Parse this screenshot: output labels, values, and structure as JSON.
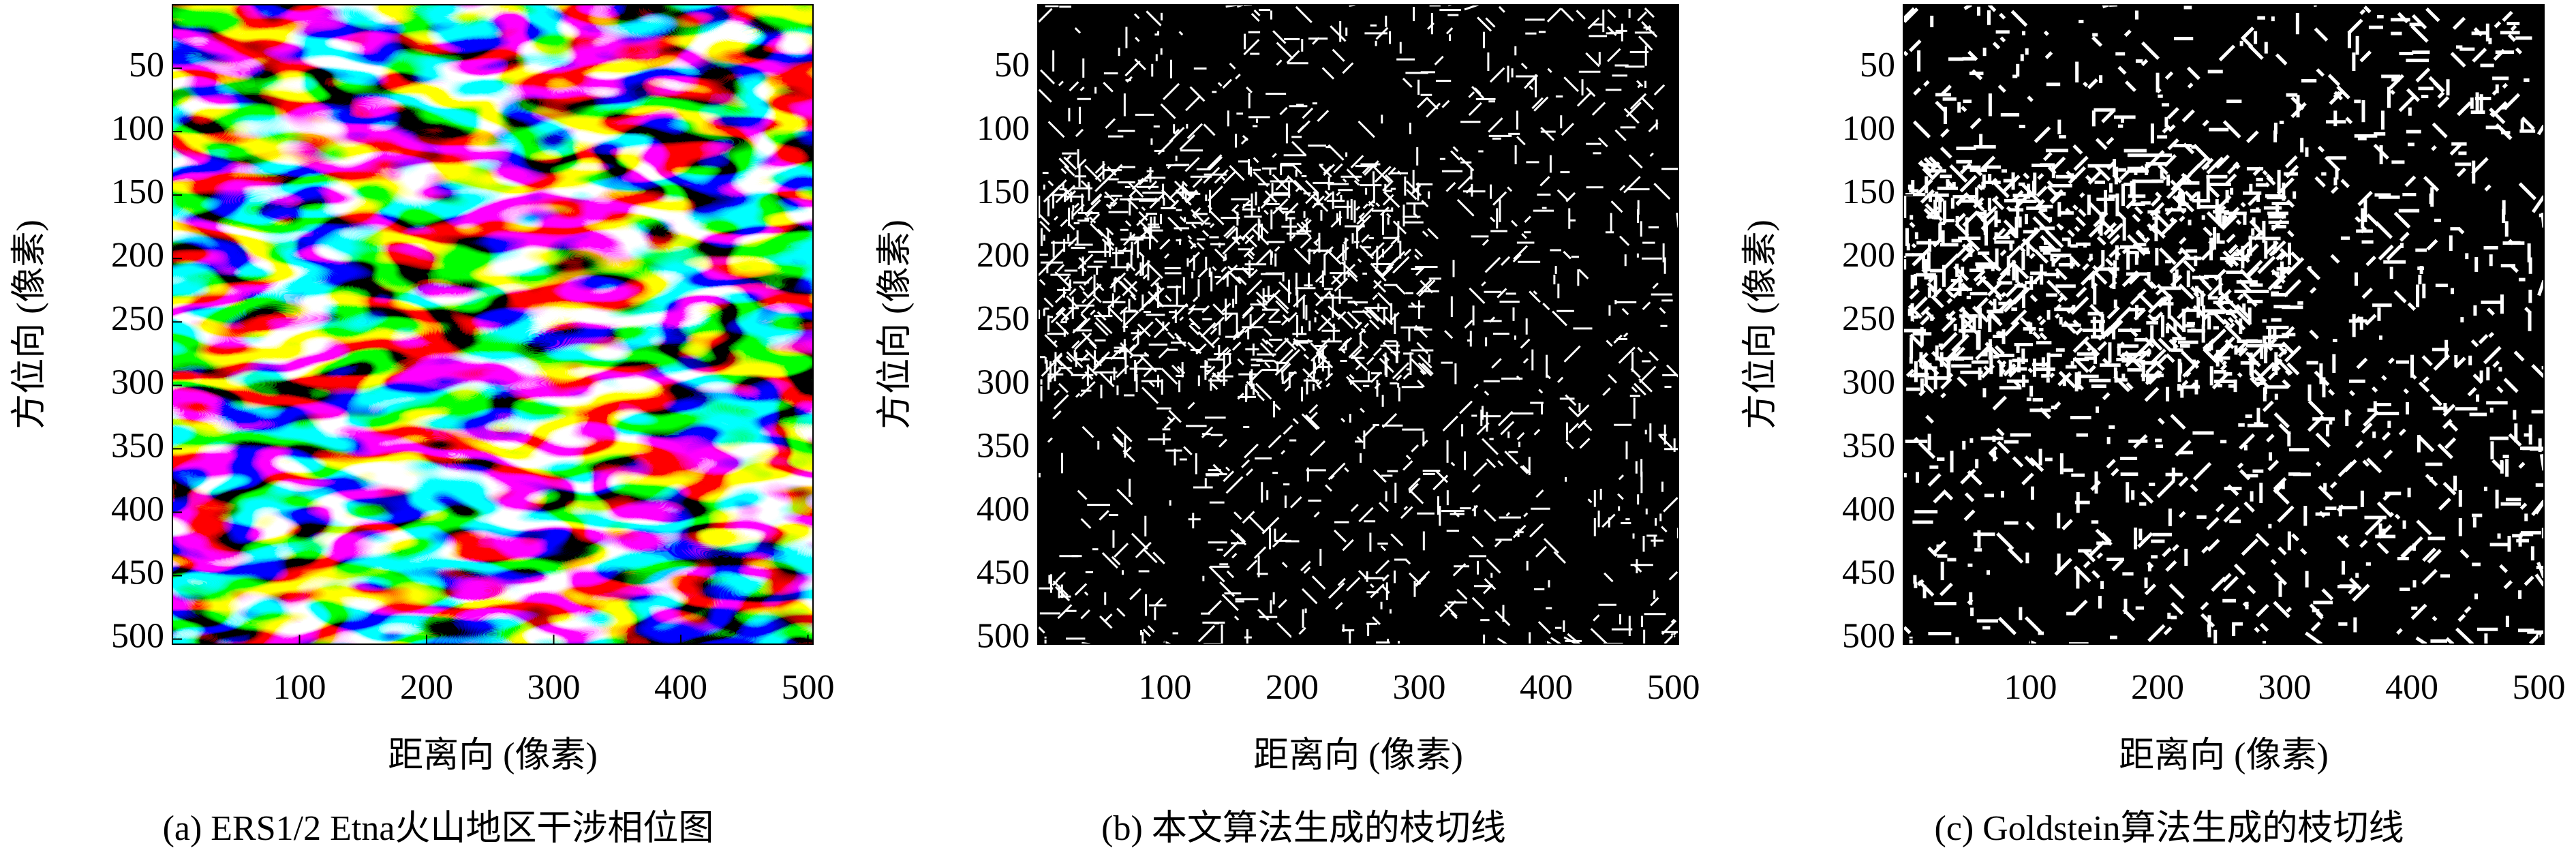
{
  "chart_data": [
    {
      "type": "image",
      "colormap": "hsv",
      "caption": "(a) ERS1/2 Etna火山地区干涉相位图",
      "xlabel": "距离向 (像素)",
      "ylabel": "方位向 (像素)",
      "xlim": [
        0,
        504
      ],
      "ylim": [
        0,
        504
      ],
      "yinverted": true,
      "xticks": [
        100,
        200,
        300,
        400,
        500
      ],
      "yticks": [
        50,
        100,
        150,
        200,
        250,
        300,
        350,
        400,
        450,
        500
      ]
    },
    {
      "type": "image",
      "colormap": "gray",
      "caption": "(b) 本文算法生成的枝切线",
      "xlabel": "距离向 (像素)",
      "ylabel": "方位向 (像素)",
      "xlim": [
        0,
        504
      ],
      "ylim": [
        0,
        504
      ],
      "yinverted": true,
      "xticks": [
        100,
        200,
        300,
        400,
        500
      ],
      "yticks": [
        50,
        100,
        150,
        200,
        250,
        300,
        350,
        400,
        450,
        500
      ]
    },
    {
      "type": "image",
      "colormap": "gray",
      "caption": "(c) Goldstein算法生成的枝切线",
      "xlabel": "距离向 (像素)",
      "ylabel": "方位向 (像素)",
      "xlim": [
        0,
        504
      ],
      "ylim": [
        0,
        504
      ],
      "yinverted": true,
      "xticks": [
        100,
        200,
        300,
        400,
        500
      ],
      "yticks": [
        50,
        100,
        150,
        200,
        250,
        300,
        350,
        400,
        450,
        500
      ]
    }
  ]
}
